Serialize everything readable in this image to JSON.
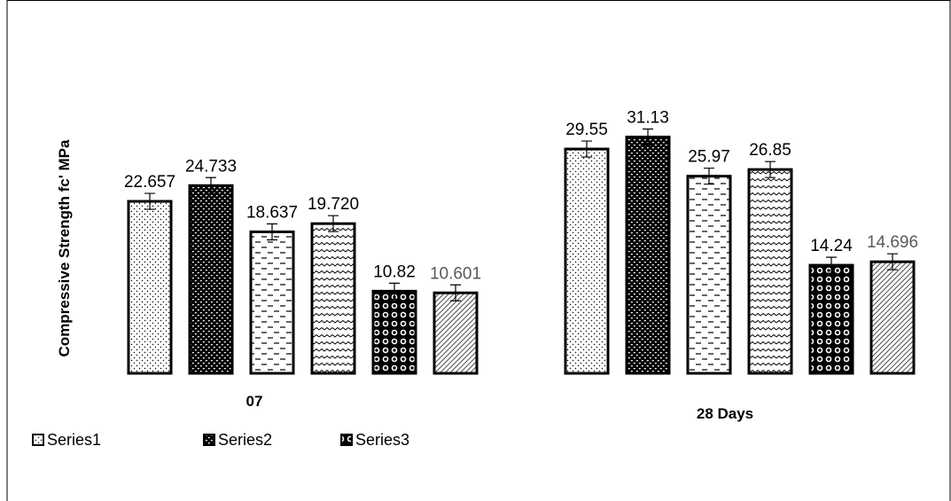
{
  "chart_data": {
    "type": "bar",
    "ylabel": "Compressive Strength fc' MPa",
    "ylim": [
      0,
      35
    ],
    "grid": false,
    "legend_position": "bottom-left",
    "groups": [
      {
        "label": "07",
        "bars": [
          {
            "value": 22.657,
            "label": "22.657",
            "pattern": "dots",
            "label_color": "#000000"
          },
          {
            "value": 24.733,
            "label": "24.733",
            "pattern": "brick",
            "label_color": "#000000"
          },
          {
            "value": 18.637,
            "label": "18.637",
            "pattern": "dashes",
            "label_color": "#000000"
          },
          {
            "value": 19.72,
            "label": "19.720",
            "pattern": "waves",
            "label_color": "#000000"
          },
          {
            "value": 10.82,
            "label": "10.82",
            "pattern": "circles",
            "label_color": "#000000"
          },
          {
            "value": 10.601,
            "label": "10.601",
            "pattern": "diagonal",
            "label_color": "#595959"
          }
        ]
      },
      {
        "label": "28 Days",
        "bars": [
          {
            "value": 29.55,
            "label": "29.55",
            "pattern": "dots",
            "label_color": "#000000"
          },
          {
            "value": 31.13,
            "label": "31.13",
            "pattern": "brick",
            "label_color": "#000000"
          },
          {
            "value": 25.97,
            "label": "25.97",
            "pattern": "dashes",
            "label_color": "#000000"
          },
          {
            "value": 26.85,
            "label": "26.85",
            "pattern": "waves",
            "label_color": "#000000"
          },
          {
            "value": 14.24,
            "label": "14.24",
            "pattern": "circles",
            "label_color": "#000000"
          },
          {
            "value": 14.696,
            "label": "14.696",
            "pattern": "diagonal",
            "label_color": "#595959"
          }
        ]
      }
    ],
    "legend": [
      {
        "name": "Series1",
        "pattern": "dots"
      },
      {
        "name": "Series2",
        "pattern": "brick"
      },
      {
        "name": "Series3",
        "pattern": "circles"
      }
    ],
    "colors": {
      "bar_stroke": "#000000",
      "text": "#000000",
      "muted_text": "#595959"
    }
  }
}
